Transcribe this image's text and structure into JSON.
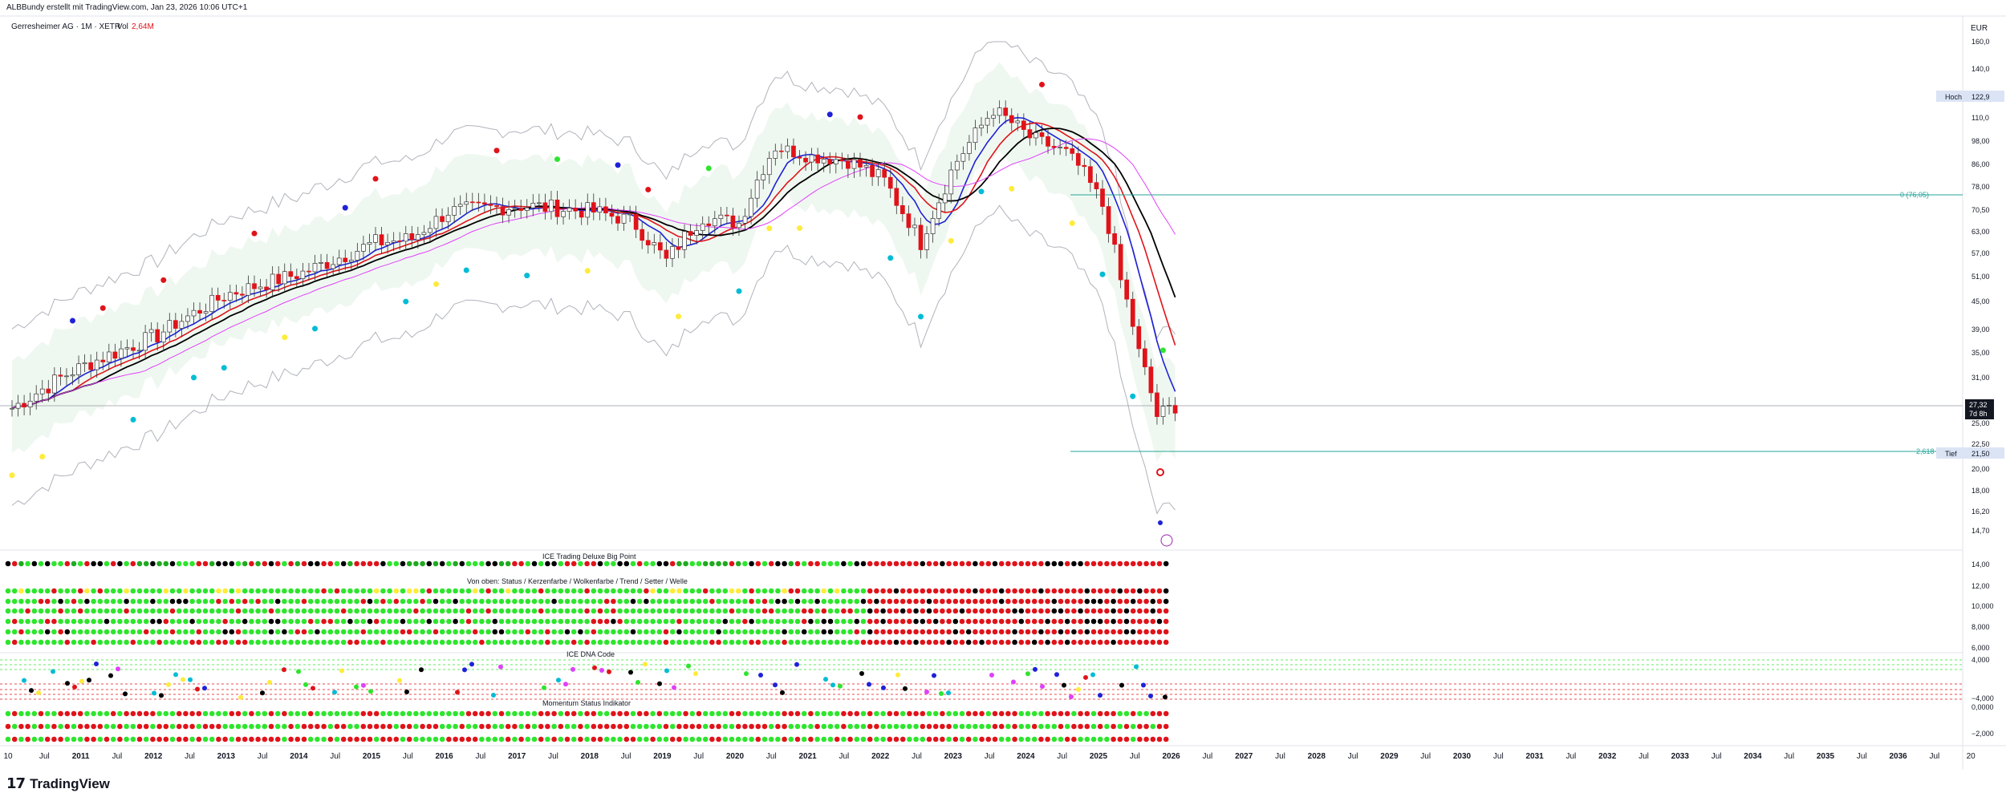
{
  "header": {
    "credit": "ALBBundy erstellt mit TradingView.com, Jan 23, 2026 10:06 UTC+1",
    "symbol": "Gerresheimer AG · 1M · XETR",
    "vol_label": "Vol",
    "vol_value": "2,64M"
  },
  "currency": "EUR",
  "branding": {
    "logo_mark": "17",
    "logo_text": "TradingView"
  },
  "colors": {
    "up": "#ffffff",
    "down": "#e0131a",
    "blue": "#1f22d6",
    "red": "#e0131a",
    "black": "#000000",
    "teal": "#26a69a",
    "green": "#2ee52e",
    "magenta": "#e040fb"
  },
  "chart_data": {
    "type": "candlestick",
    "title": "Gerresheimer AG · 1M · XETR",
    "price_axis_ticks": [
      "160,0",
      "140,0",
      "122,9",
      "110,0",
      "98,00",
      "86,00",
      "78,00",
      "70,50",
      "63,00",
      "57,00",
      "51,00",
      "45,00",
      "39,00",
      "35,00",
      "31,00",
      "27,32",
      "25,00",
      "22,50",
      "21,50",
      "20,00",
      "18,00",
      "16,20",
      "14,70"
    ],
    "last_price": "27,32",
    "countdown": "7d 8h",
    "high_label": "Hoch",
    "high_value": "122,9",
    "low_label": "Tief",
    "low_value": "21,50",
    "fib_0": "0 (76,05)",
    "fib_2618": "2,618 (21",
    "time_axis": [
      "10",
      "Jul",
      "2011",
      "Jul",
      "2012",
      "Jul",
      "2013",
      "Jul",
      "2014",
      "Jul",
      "2015",
      "Jul",
      "2016",
      "Jul",
      "2017",
      "Jul",
      "2018",
      "Jul",
      "2019",
      "Jul",
      "2020",
      "Jul",
      "2021",
      "Jul",
      "2022",
      "Jul",
      "2023",
      "Jul",
      "2024",
      "Jul",
      "2025",
      "Jul",
      "2026",
      "Jul",
      "2027",
      "Jul",
      "2028",
      "Jul",
      "2029",
      "Jul",
      "2030",
      "Jul",
      "2031",
      "Jul",
      "2032",
      "Jul",
      "2033",
      "Jul",
      "2034",
      "Jul",
      "2035",
      "Jul",
      "2036",
      "Jul",
      "20"
    ],
    "close_path": [
      {
        "x": "2010",
        "y": 27.0
      },
      {
        "x": "2011",
        "y": 33.0
      },
      {
        "x": "2012",
        "y": 38.0
      },
      {
        "x": "2013",
        "y": 47.0
      },
      {
        "x": "2014",
        "y": 52.0
      },
      {
        "x": "2015",
        "y": 60.0
      },
      {
        "x": "2015-07",
        "y": 61.0
      },
      {
        "x": "2016",
        "y": 70.0
      },
      {
        "x": "2017",
        "y": 72.0
      },
      {
        "x": "2018",
        "y": 70.0
      },
      {
        "x": "2018-07",
        "y": 67.0
      },
      {
        "x": "2019",
        "y": 55.0
      },
      {
        "x": "2019-07",
        "y": 68.0
      },
      {
        "x": "2020",
        "y": 66.0
      },
      {
        "x": "2020-07",
        "y": 95.0
      },
      {
        "x": "2021",
        "y": 90.0
      },
      {
        "x": "2021-07",
        "y": 88.0
      },
      {
        "x": "2022",
        "y": 80.0
      },
      {
        "x": "2022-07",
        "y": 60.0
      },
      {
        "x": "2023",
        "y": 88.0
      },
      {
        "x": "2023-07",
        "y": 115.0
      },
      {
        "x": "2024",
        "y": 100.0
      },
      {
        "x": "2024-07",
        "y": 92.0
      },
      {
        "x": "2025",
        "y": 72.0
      },
      {
        "x": "2025-04",
        "y": 50.0
      },
      {
        "x": "2025-07",
        "y": 35.0
      },
      {
        "x": "2025-10",
        "y": 26.0
      },
      {
        "x": "2026",
        "y": 27.32
      }
    ],
    "indicator_panes": [
      {
        "name": "ICE Trading Deluxe Big Point"
      },
      {
        "name": "Von oben: Status / Kerzenfarbe / Wolkenfarbe / Trend / Setter / Welle",
        "axis": [
          "14,00",
          "12,00",
          "10,000",
          "8,000",
          "6,000"
        ]
      },
      {
        "name": "ICE DNA Code",
        "axis": [
          "4,000",
          "−4,000",
          "0,0000"
        ]
      },
      {
        "name": "Momentum Status Indikator",
        "axis": [
          "−2,000"
        ]
      }
    ]
  }
}
